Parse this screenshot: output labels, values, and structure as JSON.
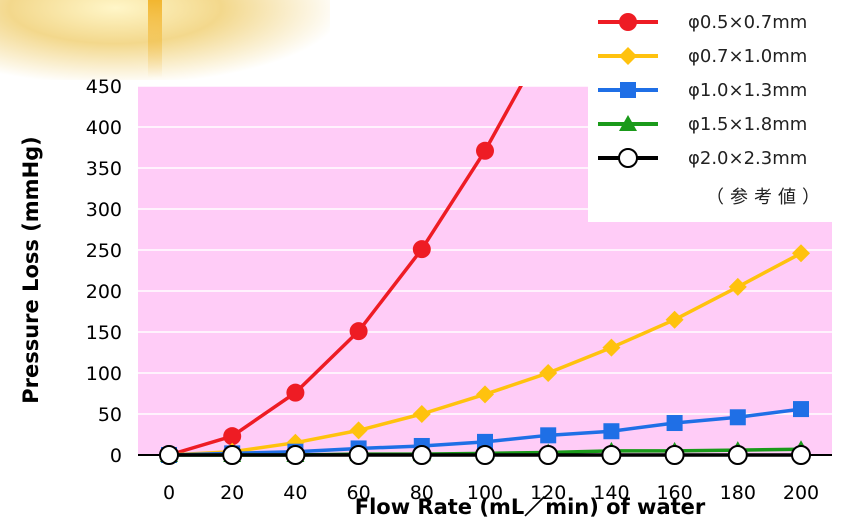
{
  "chart_data": {
    "type": "line",
    "x": [
      0,
      20,
      40,
      60,
      80,
      100,
      120,
      140,
      160,
      180,
      200
    ],
    "xlabel": "Flow Rate (mL／min) of water",
    "ylabel": "Pressure Loss (mmHg)",
    "xlim": [
      0,
      200
    ],
    "ylim": [
      0,
      450
    ],
    "x_ticks": [
      "0",
      "20",
      "40",
      "60",
      "80",
      "100",
      "120",
      "140",
      "160",
      "180",
      "200"
    ],
    "y_ticks": [
      "0",
      "50",
      "100",
      "150",
      "200",
      "250",
      "300",
      "350",
      "400",
      "450"
    ],
    "grid": "horizontal",
    "legend_position": "top-right",
    "legend_note": "（参考値）",
    "plot_background": "#ffccf7",
    "series": [
      {
        "name": "φ0.5×0.7mm",
        "color": "#ee1c24",
        "marker": "circle",
        "values": [
          0,
          23,
          76,
          151,
          251,
          371,
          510,
          null,
          null,
          null,
          null
        ]
      },
      {
        "name": "φ0.7×1.0mm",
        "color": "#ffc20e",
        "marker": "diamond",
        "values": [
          0,
          4,
          15,
          30,
          50,
          74,
          100,
          131,
          165,
          205,
          246
        ]
      },
      {
        "name": "φ1.0×1.3mm",
        "color": "#1f6fe6",
        "marker": "square",
        "values": [
          0,
          2,
          4,
          8,
          11,
          16,
          24,
          29,
          39,
          46,
          56
        ]
      },
      {
        "name": "φ1.5×1.8mm",
        "color": "#1a9a1a",
        "marker": "triangle",
        "values": [
          0,
          0,
          0,
          1,
          1,
          2,
          3,
          5,
          5,
          6,
          7
        ]
      },
      {
        "name": "φ2.0×2.3mm",
        "color": "#000000",
        "marker": "open-circle",
        "values": [
          0,
          0,
          0,
          0,
          0,
          0,
          0,
          0,
          0,
          0,
          0
        ]
      }
    ]
  }
}
